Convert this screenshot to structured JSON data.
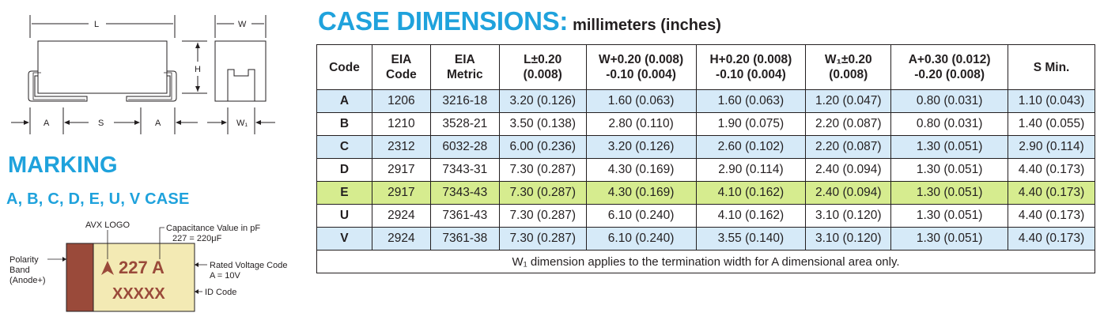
{
  "diagram": {
    "labels": {
      "L": "L",
      "W": "W",
      "H": "H",
      "A_left": "A",
      "S": "S",
      "A_right": "A",
      "W1": "W₁"
    }
  },
  "marking": {
    "heading": "MARKING",
    "subheading": "A, B, C, D, E, U, V CASE",
    "avx_logo_label": "AVX LOGO",
    "capacitance_label": "Capacitance Value in pF",
    "capacitance_example": "227 = 220μF",
    "polarity_label_1": "Polarity",
    "polarity_label_2": "Band",
    "polarity_label_3": "(Anode+)",
    "rated_voltage_label": "Rated Voltage Code",
    "rated_voltage_example": "A = 10V",
    "id_code_label": "ID Code",
    "chip_line1": "227 A",
    "chip_line2": "XXXXX",
    "colors": {
      "band": "#9a4a3a",
      "body": "#f3eab4",
      "text": "#9a4a3a"
    }
  },
  "case_dimensions": {
    "title": "CASE DIMENSIONS:",
    "unit": "millimeters (inches)",
    "headers": [
      [
        "Code"
      ],
      [
        "EIA",
        "Code"
      ],
      [
        "EIA",
        "Metric"
      ],
      [
        "L±0.20",
        "(0.008)"
      ],
      [
        "W+0.20 (0.008)",
        "-0.10 (0.004)"
      ],
      [
        "H+0.20 (0.008)",
        "-0.10 (0.004)"
      ],
      [
        "W₁±0.20",
        "(0.008)"
      ],
      [
        "A+0.30 (0.012)",
        "-0.20 (0.008)"
      ],
      [
        "S Min."
      ]
    ],
    "rows": [
      {
        "style": "blue",
        "cells": [
          "A",
          "1206",
          "3216-18",
          "3.20 (0.126)",
          "1.60 (0.063)",
          "1.60 (0.063)",
          "1.20 (0.047)",
          "0.80 (0.031)",
          "1.10 (0.043)"
        ]
      },
      {
        "style": "white",
        "cells": [
          "B",
          "1210",
          "3528-21",
          "3.50 (0.138)",
          "2.80 (0.110)",
          "1.90 (0.075)",
          "2.20 (0.087)",
          "0.80 (0.031)",
          "1.40 (0.055)"
        ]
      },
      {
        "style": "blue",
        "cells": [
          "C",
          "2312",
          "6032-28",
          "6.00 (0.236)",
          "3.20 (0.126)",
          "2.60 (0.102)",
          "2.20 (0.087)",
          "1.30 (0.051)",
          "2.90 (0.114)"
        ]
      },
      {
        "style": "white",
        "cells": [
          "D",
          "2917",
          "7343-31",
          "7.30 (0.287)",
          "4.30 (0.169)",
          "2.90 (0.114)",
          "2.40 (0.094)",
          "1.30 (0.051)",
          "4.40 (0.173)"
        ]
      },
      {
        "style": "hl",
        "cells": [
          "E",
          "2917",
          "7343-43",
          "7.30 (0.287)",
          "4.30 (0.169)",
          "4.10 (0.162)",
          "2.40 (0.094)",
          "1.30 (0.051)",
          "4.40 (0.173)"
        ]
      },
      {
        "style": "white",
        "cells": [
          "U",
          "2924",
          "7361-43",
          "7.30 (0.287)",
          "6.10 (0.240)",
          "4.10 (0.162)",
          "3.10 (0.120)",
          "1.30 (0.051)",
          "4.40 (0.173)"
        ]
      },
      {
        "style": "blue",
        "cells": [
          "V",
          "2924",
          "7361-38",
          "7.30 (0.287)",
          "6.10 (0.240)",
          "3.55 (0.140)",
          "3.10 (0.120)",
          "1.30 (0.051)",
          "4.40 (0.173)"
        ]
      }
    ],
    "footnote": "W₁ dimension applies to the termination width for A dimensional area only.",
    "colors": {
      "title": "#1fa2dc",
      "row_blue": "#d6eaf8",
      "row_highlight": "#d6ec8f"
    }
  }
}
